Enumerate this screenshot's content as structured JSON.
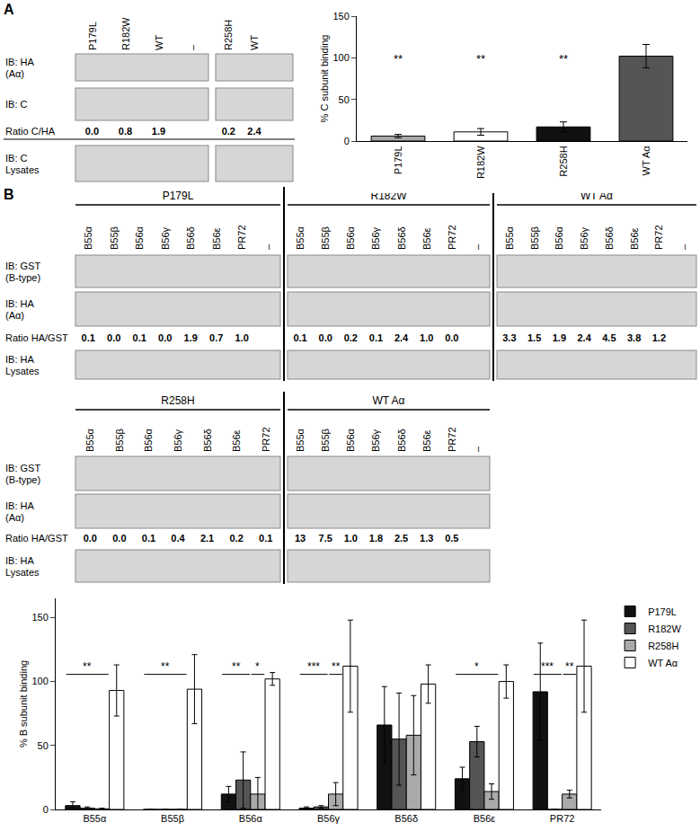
{
  "panel_labels": [
    "A",
    "B"
  ],
  "blots": [
    {
      "groups": [
        {
          "title": null,
          "lanes": [
            "P179L",
            "R182W",
            "WT",
            "–"
          ]
        },
        {
          "title": null,
          "lanes": [
            "R258H",
            "WT",
            null
          ]
        }
      ],
      "rows": [
        {
          "label": [
            "IB: HA",
            "(Aα)"
          ],
          "kind": "band"
        },
        {
          "label": [
            "IB: C"
          ],
          "kind": "band"
        },
        {
          "label": [
            "Ratio C/HA"
          ],
          "kind": "ratio",
          "values": [
            [
              "0.0",
              "0.8",
              "1.9",
              null
            ],
            [
              "0.2",
              "2.4",
              null
            ]
          ]
        },
        {
          "label": [
            "IB: C",
            "Lysates"
          ],
          "kind": "band"
        }
      ]
    },
    {
      "groups": [
        {
          "title": "P179L",
          "lanes": [
            "B55α",
            "B55β",
            "B56α",
            "B56γ",
            "B56δ",
            "B56ε",
            "PR72",
            "–"
          ]
        },
        {
          "title": "R182W",
          "lanes": [
            "B55α",
            "B55β",
            "B56α",
            "B56γ",
            "B56δ",
            "B56ε",
            "PR72",
            "–"
          ]
        },
        {
          "title": "WT Aα",
          "lanes": [
            "B55α",
            "B55β",
            "B56α",
            "B56γ",
            "B56δ",
            "B56ε",
            "PR72",
            "–"
          ]
        }
      ],
      "rows": [
        {
          "label": [
            "IB: GST",
            "(B-type)"
          ],
          "kind": "band"
        },
        {
          "label": [
            "IB: HA",
            "(Aα)"
          ],
          "kind": "band"
        },
        {
          "label": [
            "Ratio HA/GST"
          ],
          "kind": "ratio",
          "values": [
            [
              "0.1",
              "0.0",
              "0.1",
              "0.0",
              "1.9",
              "0.7",
              "1.0",
              null
            ],
            [
              "0.1",
              "0.0",
              "0.2",
              "0.1",
              "2.4",
              "1.0",
              "0.0",
              null
            ],
            [
              "3.3",
              "1.5",
              "1.9",
              "2.4",
              "4.5",
              "3.8",
              "1.2",
              null
            ]
          ]
        },
        {
          "label": [
            "IB: HA",
            "Lysates"
          ],
          "kind": "band"
        }
      ]
    },
    {
      "groups": [
        {
          "title": "R258H",
          "lanes": [
            "B55α",
            "B55β",
            "B56α",
            "B56γ",
            "B56δ",
            "B56ε",
            "PR72"
          ]
        },
        {
          "title": "WT Aα",
          "lanes": [
            "B55α",
            "B55β",
            "B56α",
            "B56γ",
            "B56δ",
            "B56ε",
            "PR72",
            "–"
          ]
        }
      ],
      "rows": [
        {
          "label": [
            "IB: GST",
            "(B-type)"
          ],
          "kind": "band"
        },
        {
          "label": [
            "IB: HA",
            "(Aα)"
          ],
          "kind": "band"
        },
        {
          "label": [
            "Ratio HA/GST"
          ],
          "kind": "ratio",
          "values": [
            [
              "0.0",
              "0.0",
              "0.1",
              "0.4",
              "2.1",
              "0.2",
              "0.1"
            ],
            [
              "13",
              "7.5",
              "1.0",
              "1.8",
              "2.5",
              "1.3",
              "0.5",
              null
            ]
          ]
        },
        {
          "label": [
            "IB: HA",
            "Lysates"
          ],
          "kind": "band"
        }
      ]
    }
  ],
  "chart_data": [
    {
      "type": "bar",
      "categories": [
        "P179L",
        "R182W",
        "R258H",
        "WT Aα"
      ],
      "values": [
        6,
        11,
        17,
        102
      ],
      "errors": [
        2,
        4,
        6,
        14
      ],
      "colors": [
        "#a6a6a6",
        "#ffffff",
        "#111111",
        "#555555"
      ],
      "ylabel": "% C subunit binding",
      "ylim": [
        0,
        150
      ],
      "yticks": [
        0,
        50,
        100,
        150
      ],
      "significance": [
        {
          "category": "P179L",
          "text": "**"
        },
        {
          "category": "R182W",
          "text": "**"
        },
        {
          "category": "R258H",
          "text": "**"
        }
      ]
    },
    {
      "type": "bar",
      "categories": [
        "B55α",
        "B55β",
        "B56α",
        "B56γ",
        "B56δ",
        "B56ε",
        "PR72"
      ],
      "series": [
        {
          "name": "P179L",
          "color": "#111111",
          "values": [
            3,
            0,
            12,
            1,
            66,
            24,
            92
          ],
          "errors": [
            3,
            0,
            6,
            1,
            30,
            9,
            38
          ]
        },
        {
          "name": "R182W",
          "color": "#555555",
          "values": [
            1,
            0,
            23,
            2,
            55,
            53,
            0
          ],
          "errors": [
            1,
            0,
            22,
            1,
            36,
            12,
            0
          ]
        },
        {
          "name": "R258H",
          "color": "#aaaaaa",
          "values": [
            0.5,
            0,
            12,
            12,
            58,
            14,
            12
          ],
          "errors": [
            0.5,
            0,
            13,
            9,
            31,
            6,
            3
          ]
        },
        {
          "name": "WT Aα",
          "color": "#ffffff",
          "values": [
            93,
            94,
            102,
            112,
            98,
            100,
            112
          ],
          "errors": [
            20,
            27,
            5,
            36,
            15,
            13,
            36
          ]
        }
      ],
      "ylabel": "% B subunit binding",
      "ylim": [
        0,
        165
      ],
      "yticks": [
        0,
        50,
        100,
        150
      ],
      "legend": "right",
      "significance": [
        {
          "category": "B55α",
          "text": "**",
          "from": "P179L",
          "to": "R258H"
        },
        {
          "category": "B55β",
          "text": "**",
          "from": "P179L",
          "to": "R258H"
        },
        {
          "category": "B56α",
          "text": "**",
          "from": "P179L",
          "to": "R182W"
        },
        {
          "category": "B56α",
          "text": "*",
          "from": "R258H",
          "to": "R258H"
        },
        {
          "category": "B56γ",
          "text": "***",
          "from": "P179L",
          "to": "R182W"
        },
        {
          "category": "B56γ",
          "text": "**",
          "from": "R258H",
          "to": "R258H"
        },
        {
          "category": "B56ε",
          "text": "*",
          "from": "P179L",
          "to": "R258H"
        },
        {
          "category": "PR72",
          "text": "***",
          "from": "P179L",
          "to": "R182W"
        },
        {
          "category": "PR72",
          "text": "**",
          "from": "R258H",
          "to": "R258H"
        }
      ]
    }
  ]
}
